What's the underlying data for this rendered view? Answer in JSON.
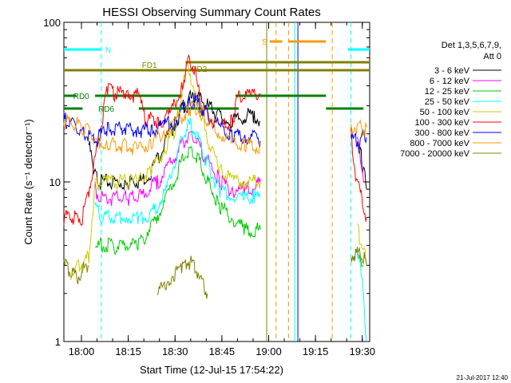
{
  "chart_data": {
    "type": "line",
    "title": "HESSI Observing Summary Count Rates",
    "xlabel": "Start Time (12-Jul-15 17:54:22)",
    "ylabel": "Count Rate (s⁻¹ detector⁻¹)",
    "yscale": "log",
    "ylim": [
      1,
      100
    ],
    "xlim_minutes_after_start": [
      0,
      98
    ],
    "x_ticks": [
      "18:00",
      "18:15",
      "18:30",
      "18:45",
      "19:00",
      "19:15",
      "19:30"
    ],
    "y_ticks": [
      "1",
      "10",
      "100"
    ],
    "legend": {
      "header_line1": "Det 1,3,5,6,7,9,",
      "header_line2": "Att 0",
      "placement": "right"
    },
    "series": [
      {
        "name": "3 - 6 keV",
        "color": "#000000",
        "segments": [
          [
            [
              8,
              17
            ],
            [
              9,
              14
            ],
            [
              10,
              11
            ],
            [
              12,
              10
            ],
            [
              20,
              10
            ],
            [
              22,
              10
            ],
            [
              24,
              10
            ],
            [
              27,
              11
            ],
            [
              30,
              14
            ],
            [
              33,
              19
            ],
            [
              36,
              24
            ],
            [
              38,
              30
            ],
            [
              40,
              33
            ],
            [
              42,
              34
            ],
            [
              44,
              33
            ],
            [
              46,
              30
            ],
            [
              48,
              28
            ],
            [
              52,
              24
            ],
            [
              55,
              24
            ],
            [
              58,
              26
            ],
            [
              61,
              26
            ],
            [
              63,
              24
            ]
          ],
          [
            [
              94,
              19
            ],
            [
              95,
              16
            ],
            [
              96,
              12
            ],
            [
              97,
              9
            ]
          ]
        ]
      },
      {
        "name": "6 - 12 keV",
        "color": "#ff00ff",
        "segments": [
          [
            [
              10,
              9
            ],
            [
              12,
              8
            ],
            [
              20,
              8
            ],
            [
              22,
              8
            ],
            [
              24,
              8
            ],
            [
              27,
              9
            ],
            [
              30,
              10
            ],
            [
              33,
              12
            ],
            [
              36,
              15
            ],
            [
              38,
              18
            ],
            [
              40,
              19
            ],
            [
              42,
              18
            ],
            [
              44,
              16
            ],
            [
              46,
              14
            ],
            [
              50,
              10
            ],
            [
              54,
              9
            ],
            [
              58,
              9
            ],
            [
              61,
              9
            ],
            [
              63,
              10
            ]
          ],
          [
            [
              94,
              18
            ],
            [
              95,
              14
            ],
            [
              96,
              10
            ]
          ]
        ]
      },
      {
        "name": "12 - 25 keV",
        "color": "#00cc00",
        "segments": [
          [
            [
              10,
              4
            ],
            [
              12,
              4
            ],
            [
              24,
              4
            ],
            [
              27,
              5
            ],
            [
              30,
              6
            ],
            [
              33,
              8
            ],
            [
              36,
              11
            ],
            [
              38,
              14
            ],
            [
              40,
              16
            ],
            [
              42,
              15
            ],
            [
              44,
              13
            ],
            [
              46,
              10
            ],
            [
              50,
              7
            ],
            [
              54,
              6
            ],
            [
              58,
              5
            ],
            [
              61,
              5
            ],
            [
              63,
              5
            ]
          ],
          [
            [
              94,
              4
            ],
            [
              96,
              3
            ]
          ]
        ]
      },
      {
        "name": "25 - 50 keV",
        "color": "#00ffff",
        "segments": [
          [
            [
              10,
              7
            ],
            [
              12,
              6
            ],
            [
              20,
              6
            ],
            [
              24,
              6
            ],
            [
              27,
              6
            ],
            [
              30,
              7
            ],
            [
              33,
              9
            ],
            [
              36,
              14
            ],
            [
              38,
              19
            ],
            [
              40,
              23
            ],
            [
              42,
              21
            ],
            [
              44,
              17
            ],
            [
              46,
              13
            ],
            [
              50,
              9
            ],
            [
              54,
              8
            ],
            [
              58,
              8
            ],
            [
              61,
              8
            ],
            [
              63,
              8
            ]
          ],
          [
            [
              94,
              4
            ],
            [
              96,
              2
            ],
            [
              97,
              1
            ]
          ]
        ]
      },
      {
        "name": "50 - 100 keV",
        "color": "#cccc00",
        "segments": [
          [
            [
              2,
              2.5
            ],
            [
              4,
              3
            ],
            [
              6,
              3
            ],
            [
              8,
              3.5
            ],
            [
              10,
              10
            ],
            [
              14,
              10
            ],
            [
              20,
              10
            ],
            [
              24,
              10
            ],
            [
              28,
              12
            ],
            [
              32,
              16
            ],
            [
              36,
              22
            ],
            [
              38,
              40
            ],
            [
              40,
              55
            ],
            [
              42,
              35
            ],
            [
              44,
              25
            ],
            [
              46,
              18
            ],
            [
              50,
              12
            ],
            [
              54,
              10
            ],
            [
              58,
              10
            ],
            [
              61,
              10
            ],
            [
              63,
              10
            ]
          ],
          [
            [
              94,
              5
            ],
            [
              96,
              4
            ],
            [
              97,
              3
            ]
          ]
        ]
      },
      {
        "name": "100 - 300 keV",
        "color": "#ff0000",
        "segments": [
          [
            [
              0,
              6
            ],
            [
              2,
              6
            ],
            [
              4,
              6
            ],
            [
              6,
              6
            ],
            [
              8,
              9
            ],
            [
              10,
              14
            ],
            [
              14,
              38
            ],
            [
              16,
              36
            ],
            [
              20,
              36
            ],
            [
              24,
              35
            ],
            [
              26,
              25
            ],
            [
              30,
              24
            ],
            [
              34,
              26
            ],
            [
              38,
              40
            ],
            [
              40,
              60
            ],
            [
              42,
              50
            ],
            [
              44,
              30
            ],
            [
              46,
              26
            ],
            [
              50,
              22
            ],
            [
              54,
              24
            ],
            [
              56,
              35
            ],
            [
              60,
              35
            ],
            [
              63,
              36
            ]
          ],
          [
            [
              92,
              24
            ],
            [
              93,
              12
            ],
            [
              94,
              10
            ],
            [
              96,
              7
            ],
            [
              97,
              6
            ]
          ]
        ]
      },
      {
        "name": "300 - 800 keV",
        "color": "#0000ff",
        "segments": [
          [
            [
              0,
              25
            ],
            [
              2,
              23
            ],
            [
              4,
              22
            ],
            [
              6,
              20
            ],
            [
              8,
              20
            ],
            [
              10,
              18
            ],
            [
              14,
              22
            ],
            [
              20,
              22
            ],
            [
              24,
              21
            ],
            [
              28,
              21
            ],
            [
              32,
              22
            ],
            [
              36,
              25
            ],
            [
              40,
              31
            ],
            [
              42,
              33
            ],
            [
              44,
              30
            ],
            [
              46,
              26
            ],
            [
              50,
              22
            ],
            [
              54,
              20
            ],
            [
              58,
              19
            ],
            [
              61,
              19
            ],
            [
              63,
              18
            ]
          ],
          [
            [
              92,
              18
            ],
            [
              94,
              18
            ],
            [
              96,
              19
            ],
            [
              97,
              19
            ]
          ]
        ]
      },
      {
        "name": "800 - 7000 keV",
        "color": "#ff9900",
        "segments": [
          [
            [
              0,
              24
            ],
            [
              2,
              24
            ],
            [
              4,
              23
            ],
            [
              6,
              22
            ],
            [
              8,
              22
            ],
            [
              10,
              18
            ],
            [
              14,
              17
            ],
            [
              20,
              17
            ],
            [
              24,
              16
            ],
            [
              28,
              18
            ],
            [
              32,
              20
            ],
            [
              36,
              24
            ],
            [
              40,
              29
            ],
            [
              42,
              30
            ],
            [
              44,
              28
            ],
            [
              46,
              24
            ],
            [
              50,
              20
            ],
            [
              54,
              18
            ],
            [
              58,
              17
            ],
            [
              61,
              17
            ],
            [
              63,
              17
            ]
          ],
          [
            [
              92,
              22
            ],
            [
              94,
              22
            ],
            [
              96,
              22
            ],
            [
              97,
              22
            ]
          ]
        ]
      },
      {
        "name": "7000 - 20000 keV",
        "color": "#808000",
        "segments": [
          [
            [
              0,
              3
            ],
            [
              2,
              2.8
            ],
            [
              4,
              2.5
            ],
            [
              6,
              2.8
            ],
            [
              8,
              3
            ]
          ],
          [
            [
              30,
              2
            ],
            [
              34,
              2.5
            ],
            [
              38,
              3
            ],
            [
              40,
              3.2
            ],
            [
              42,
              3
            ],
            [
              44,
              2.5
            ],
            [
              46,
              2
            ]
          ],
          [
            [
              92,
              3.5
            ],
            [
              94,
              3.5
            ],
            [
              96,
              3.5
            ],
            [
              97,
              3
            ]
          ]
        ]
      }
    ],
    "state_bars": [
      {
        "label": "N",
        "color": "#00ffff",
        "y_fraction_from_top": 0.085,
        "segments": [
          [
            0,
            12
          ],
          [
            91,
            98
          ]
        ]
      },
      {
        "label": "S",
        "color": "#ff9900",
        "y_fraction_from_top": 0.06,
        "segments": [
          [
            66,
            70
          ],
          [
            72,
            84
          ]
        ]
      },
      {
        "label": "FD1",
        "color": "#808000",
        "y_fraction_from_top": 0.15,
        "segments": [
          [
            0,
            98
          ]
        ]
      },
      {
        "label": "FD2",
        "color": "#808000",
        "y_fraction_from_top": 0.125,
        "segments": [
          [
            39,
            98
          ]
        ]
      },
      {
        "label": "RD0",
        "color": "#008000",
        "y_fraction_from_top": 0.23,
        "segments": [
          [
            0,
            4
          ],
          [
            10,
            38
          ],
          [
            55,
            84
          ]
        ]
      },
      {
        "label": "RD6",
        "color": "#008000",
        "y_fraction_from_top": 0.27,
        "segments": [
          [
            0,
            6
          ],
          [
            24,
            56
          ],
          [
            84,
            96
          ]
        ]
      }
    ],
    "vertical_markers": [
      {
        "color": "#00ffff",
        "style": "dashed",
        "x": 12
      },
      {
        "color": "#808000",
        "style": "solid",
        "x": 65
      },
      {
        "color": "#ff9900",
        "style": "dashed",
        "x": 68
      },
      {
        "color": "#ff9900",
        "style": "dashed",
        "x": 72
      },
      {
        "color": "#00ffff",
        "style": "solid",
        "x": 74
      },
      {
        "color": "#0000ff",
        "style": "solid",
        "x": 75
      },
      {
        "color": "#ff9900",
        "style": "dashed",
        "x": 86
      },
      {
        "color": "#00ffff",
        "style": "dashed",
        "x": 92
      }
    ],
    "footer_timestamp": "21-Jul-2017 12:40"
  }
}
